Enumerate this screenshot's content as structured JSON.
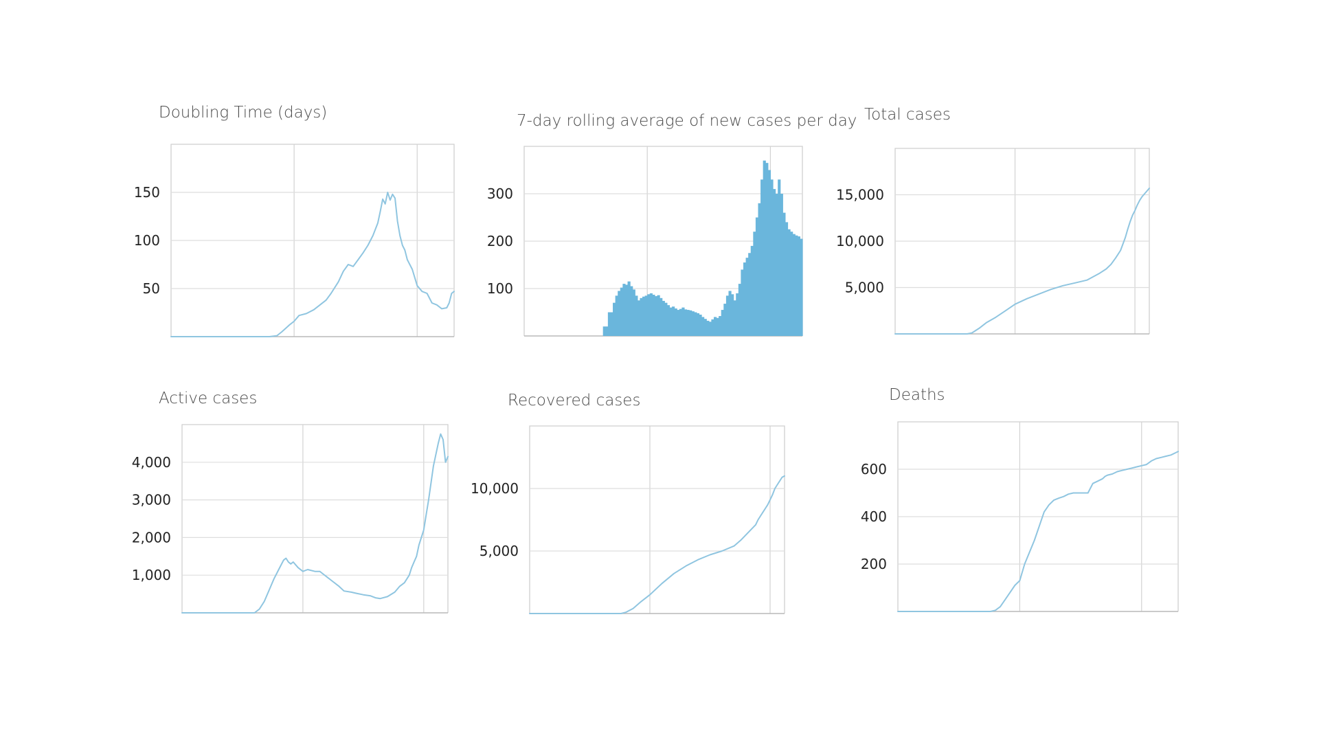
{
  "chart_data": [
    {
      "id": "doubling",
      "type": "line",
      "title": "Doubling Time (days)",
      "ylim": [
        0,
        200
      ],
      "yticks": [
        {
          "value": 50,
          "label": "50"
        },
        {
          "value": 100,
          "label": "100"
        },
        {
          "value": 150,
          "label": "150"
        }
      ],
      "x_range": [
        0,
        115
      ],
      "x_gridlines": [
        50,
        100
      ],
      "color": "#8fc5e0",
      "x": [
        0,
        10,
        20,
        30,
        40,
        43,
        45,
        48,
        50,
        52,
        55,
        58,
        60,
        63,
        65,
        68,
        70,
        72,
        74,
        76,
        78,
        80,
        82,
        84,
        85,
        86,
        87,
        88,
        89,
        90,
        91,
        92,
        93,
        94,
        95,
        96,
        98,
        100,
        102,
        104,
        106,
        108,
        110,
        112,
        113,
        114,
        115
      ],
      "y": [
        0,
        0,
        0,
        0,
        0,
        1,
        5,
        12,
        16,
        22,
        24,
        28,
        32,
        38,
        45,
        57,
        68,
        75,
        73,
        80,
        87,
        95,
        105,
        118,
        130,
        143,
        138,
        150,
        142,
        148,
        144,
        120,
        105,
        95,
        90,
        80,
        70,
        53,
        47,
        45,
        35,
        33,
        29,
        30,
        35,
        45,
        47
      ]
    },
    {
      "id": "new-cases",
      "type": "bar",
      "title": "7-day rolling average of new cases per day",
      "ylim": [
        0,
        400
      ],
      "yticks": [
        {
          "value": 100,
          "label": "100"
        },
        {
          "value": 200,
          "label": "200"
        },
        {
          "value": 300,
          "label": "300"
        }
      ],
      "x_range": [
        0,
        113
      ],
      "x_gridlines": [
        50,
        100
      ],
      "color": "#6ab6dc",
      "x": [
        0,
        32,
        34,
        36,
        37,
        38,
        39,
        40,
        41,
        42,
        43,
        44,
        45,
        46,
        47,
        48,
        49,
        50,
        51,
        52,
        53,
        54,
        55,
        56,
        57,
        58,
        59,
        60,
        61,
        62,
        63,
        64,
        65,
        66,
        67,
        68,
        69,
        70,
        71,
        72,
        73,
        74,
        75,
        76,
        77,
        78,
        79,
        80,
        81,
        82,
        83,
        84,
        85,
        86,
        87,
        88,
        89,
        90,
        91,
        92,
        93,
        94,
        95,
        96,
        97,
        98,
        99,
        100,
        101,
        102,
        103,
        104,
        105,
        106,
        107,
        108,
        109,
        110,
        111,
        112,
        113
      ],
      "values": [
        0,
        0,
        20,
        50,
        70,
        85,
        95,
        102,
        110,
        108,
        115,
        105,
        98,
        85,
        75,
        80,
        83,
        85,
        88,
        90,
        87,
        84,
        86,
        80,
        74,
        70,
        65,
        60,
        62,
        58,
        55,
        57,
        60,
        56,
        55,
        54,
        52,
        50,
        48,
        45,
        40,
        36,
        32,
        30,
        35,
        40,
        38,
        42,
        55,
        68,
        85,
        95,
        88,
        75,
        90,
        110,
        140,
        155,
        165,
        175,
        190,
        220,
        250,
        280,
        330,
        370,
        365,
        350,
        330,
        310,
        300,
        330,
        300,
        260,
        240,
        225,
        220,
        215,
        212,
        210,
        205
      ]
    },
    {
      "id": "total-cases",
      "type": "line",
      "title": "Total cases",
      "ylim": [
        0,
        20000
      ],
      "yticks": [
        {
          "value": 5000,
          "label": "5,000"
        },
        {
          "value": 10000,
          "label": "10,000"
        },
        {
          "value": 15000,
          "label": "15,000"
        }
      ],
      "x_range": [
        0,
        106
      ],
      "x_gridlines": [
        50,
        100
      ],
      "color": "#8fc5e0",
      "x": [
        0,
        25,
        30,
        32,
        35,
        38,
        42,
        46,
        50,
        55,
        60,
        65,
        70,
        75,
        80,
        85,
        88,
        90,
        92,
        94,
        95,
        96,
        97,
        98,
        99,
        100,
        101,
        102,
        103,
        104,
        105,
        106
      ],
      "y": [
        0,
        0,
        0,
        100,
        600,
        1200,
        1800,
        2500,
        3200,
        3800,
        4300,
        4800,
        5200,
        5500,
        5800,
        6500,
        7000,
        7500,
        8200,
        9000,
        9700,
        10400,
        11300,
        12100,
        12800,
        13300,
        13900,
        14400,
        14800,
        15100,
        15400,
        15700
      ]
    },
    {
      "id": "active-cases",
      "type": "line",
      "title": "Active cases",
      "ylim": [
        0,
        5000
      ],
      "yticks": [
        {
          "value": 1000,
          "label": "1,000"
        },
        {
          "value": 2000,
          "label": "2,000"
        },
        {
          "value": 3000,
          "label": "3,000"
        },
        {
          "value": 4000,
          "label": "4,000"
        }
      ],
      "x_range": [
        0,
        110
      ],
      "x_gridlines": [
        50,
        100
      ],
      "color": "#8fc5e0",
      "x": [
        0,
        10,
        20,
        30,
        32,
        34,
        36,
        38,
        40,
        42,
        43,
        44,
        45,
        46,
        48,
        50,
        52,
        55,
        57,
        58,
        60,
        62,
        65,
        67,
        70,
        72,
        75,
        78,
        80,
        82,
        85,
        88,
        90,
        92,
        94,
        95,
        96,
        97,
        98,
        99,
        100,
        101,
        102,
        104,
        106,
        107,
        108,
        109,
        110
      ],
      "y": [
        0,
        0,
        0,
        0,
        100,
        300,
        600,
        900,
        1150,
        1400,
        1450,
        1350,
        1300,
        1350,
        1200,
        1100,
        1150,
        1100,
        1100,
        1050,
        950,
        850,
        700,
        580,
        550,
        520,
        480,
        450,
        400,
        380,
        430,
        550,
        700,
        800,
        1000,
        1200,
        1350,
        1500,
        1800,
        2000,
        2200,
        2600,
        3000,
        3900,
        4500,
        4750,
        4600,
        4000,
        4150
      ]
    },
    {
      "id": "recovered-cases",
      "type": "line",
      "title": "Recovered cases",
      "ylim": [
        0,
        15000
      ],
      "yticks": [
        {
          "value": 5000,
          "label": "5,000"
        },
        {
          "value": 10000,
          "label": "10,000"
        }
      ],
      "x_range": [
        0,
        106
      ],
      "x_gridlines": [
        50,
        100
      ],
      "color": "#8fc5e0",
      "x": [
        0,
        20,
        38,
        40,
        43,
        46,
        50,
        55,
        60,
        65,
        70,
        75,
        80,
        85,
        88,
        90,
        92,
        94,
        95,
        96,
        97,
        98,
        99,
        100,
        101,
        102,
        103,
        104,
        105,
        106
      ],
      "y": [
        0,
        0,
        0,
        100,
        400,
        900,
        1500,
        2400,
        3200,
        3800,
        4300,
        4700,
        5000,
        5400,
        5900,
        6300,
        6700,
        7100,
        7500,
        7800,
        8100,
        8400,
        8700,
        9100,
        9500,
        10000,
        10300,
        10600,
        10900,
        11000
      ]
    },
    {
      "id": "deaths",
      "type": "line",
      "title": "Deaths",
      "ylim": [
        0,
        800
      ],
      "yticks": [
        {
          "value": 200,
          "label": "200"
        },
        {
          "value": 400,
          "label": "400"
        },
        {
          "value": 600,
          "label": "600"
        }
      ],
      "x_range": [
        0,
        115
      ],
      "x_gridlines": [
        50,
        100
      ],
      "color": "#8fc5e0",
      "x": [
        0,
        20,
        38,
        40,
        42,
        44,
        46,
        48,
        50,
        52,
        54,
        56,
        58,
        60,
        62,
        64,
        66,
        68,
        70,
        72,
        74,
        76,
        78,
        80,
        82,
        84,
        85,
        86,
        88,
        90,
        92,
        94,
        96,
        98,
        100,
        102,
        104,
        106,
        108,
        110,
        112,
        114,
        115
      ],
      "y": [
        0,
        0,
        0,
        5,
        20,
        50,
        80,
        110,
        130,
        200,
        250,
        300,
        360,
        420,
        450,
        470,
        478,
        485,
        495,
        500,
        500,
        500,
        500,
        540,
        550,
        560,
        570,
        575,
        580,
        590,
        595,
        600,
        605,
        610,
        615,
        620,
        635,
        645,
        650,
        655,
        660,
        670,
        675
      ]
    }
  ]
}
